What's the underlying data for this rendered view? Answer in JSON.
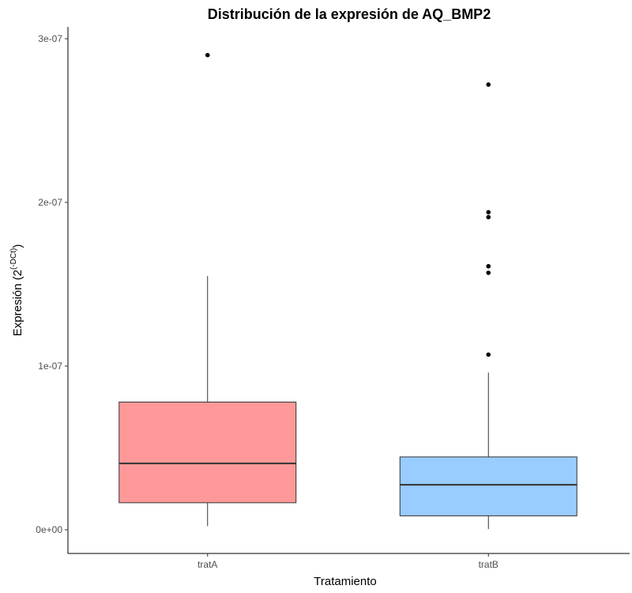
{
  "chart_data": {
    "type": "boxplot",
    "title": "Distribución de la expresión de AQ_BMP2",
    "xlabel": "Tratamiento",
    "ylabel": {
      "prefix": "Expresión (2",
      "superscript": "(-DCt)",
      "suffix": ")"
    },
    "ylim": [
      -1.45e-07,
      3.05e-07
    ],
    "yticks": [
      {
        "value": 0,
        "label": "0e+00"
      },
      {
        "value": 1e-07,
        "label": "1e-07"
      },
      {
        "value": 2e-07,
        "label": "2e-07"
      },
      {
        "value": 3e-07,
        "label": "3e-07"
      }
    ],
    "categories": [
      "tratA",
      "tratB"
    ],
    "boxes": [
      {
        "category": "tratA",
        "color": "#ff9999",
        "whisker_low": 2.2e-09,
        "q1": 1.65e-08,
        "median": 4.05e-08,
        "q3": 7.8e-08,
        "whisker_high": 1.55e-07,
        "outliers": [
          2.9e-07
        ]
      },
      {
        "category": "tratB",
        "color": "#99ccff",
        "whisker_low": 4e-10,
        "q1": 8.5e-09,
        "median": 2.75e-08,
        "q3": 4.45e-08,
        "whisker_high": 9.6e-08,
        "outliers": [
          1.07e-07,
          1.57e-07,
          1.61e-07,
          1.91e-07,
          1.94e-07,
          2.72e-07
        ]
      }
    ]
  }
}
